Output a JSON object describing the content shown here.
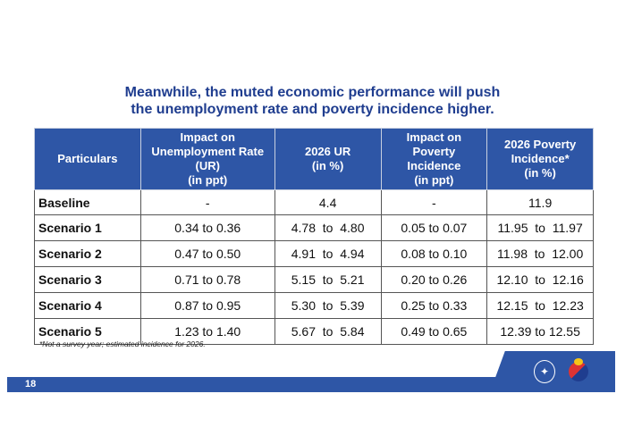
{
  "title": {
    "line1": "Meanwhile, the muted economic performance will push",
    "line2": "the unemployment rate and poverty incidence higher."
  },
  "table": {
    "headers": [
      [
        "Particulars"
      ],
      [
        "Impact on",
        "Unemployment Rate",
        "(UR)",
        "(in ppt)"
      ],
      [
        "2026  UR",
        "(in %)"
      ],
      [
        "Impact on",
        "Poverty",
        "Incidence",
        "(in ppt)"
      ],
      [
        "2026 Poverty",
        "Incidence*",
        "(in %)"
      ]
    ],
    "rows": [
      [
        "Baseline",
        "-",
        "4.4",
        "-",
        "11.9"
      ],
      [
        "Scenario 1",
        "0.34 to 0.36",
        "4.78  to  4.80",
        "0.05 to 0.07",
        "11.95  to  11.97"
      ],
      [
        "Scenario 2",
        "0.47 to 0.50",
        "4.91  to  4.94",
        "0.08 to 0.10",
        "11.98  to  12.00"
      ],
      [
        "Scenario 3",
        "0.71 to 0.78",
        "5.15  to  5.21",
        "0.20 to 0.26",
        "12.10  to  12.16"
      ],
      [
        "Scenario 4",
        "0.87 to 0.95",
        "5.30  to  5.39",
        "0.25 to 0.33",
        "12.15  to  12.23"
      ],
      [
        "Scenario 5",
        "1.23 to 1.40",
        "5.67  to  5.84",
        "0.49 to 0.65",
        "12.39 to 12.55"
      ]
    ]
  },
  "footnote": "*Not a survey year; estimated incidence for 2026.",
  "footer": {
    "page_number": "18",
    "logo_text": "BAGONG PILIPINAS"
  },
  "colors": {
    "accent": "#2e56a6",
    "title": "#1f3d8f"
  }
}
